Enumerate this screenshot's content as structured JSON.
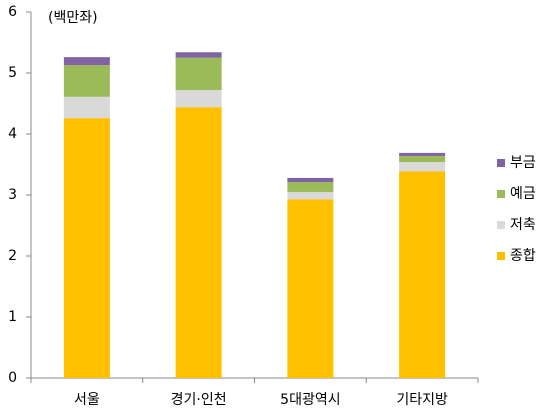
{
  "chart_data": {
    "type": "stacked_bar",
    "unit_label": "(백만좌)",
    "categories": [
      "서울",
      "경기·인천",
      "5대광역시",
      "기타지방"
    ],
    "series": [
      {
        "name": "종합",
        "color": "#ffc000",
        "values": [
          4.26,
          4.44,
          2.93,
          3.39
        ]
      },
      {
        "name": "저축",
        "color": "#d9d9d9",
        "values": [
          0.35,
          0.28,
          0.12,
          0.15
        ]
      },
      {
        "name": "예금",
        "color": "#9bbb59",
        "values": [
          0.52,
          0.53,
          0.16,
          0.1
        ]
      },
      {
        "name": "부금",
        "color": "#8064a2",
        "values": [
          0.13,
          0.09,
          0.07,
          0.05
        ]
      }
    ],
    "ylim": [
      0,
      6
    ],
    "yticks": [
      0,
      1,
      2,
      3,
      4,
      5,
      6
    ],
    "grid": false,
    "legend": "right"
  }
}
